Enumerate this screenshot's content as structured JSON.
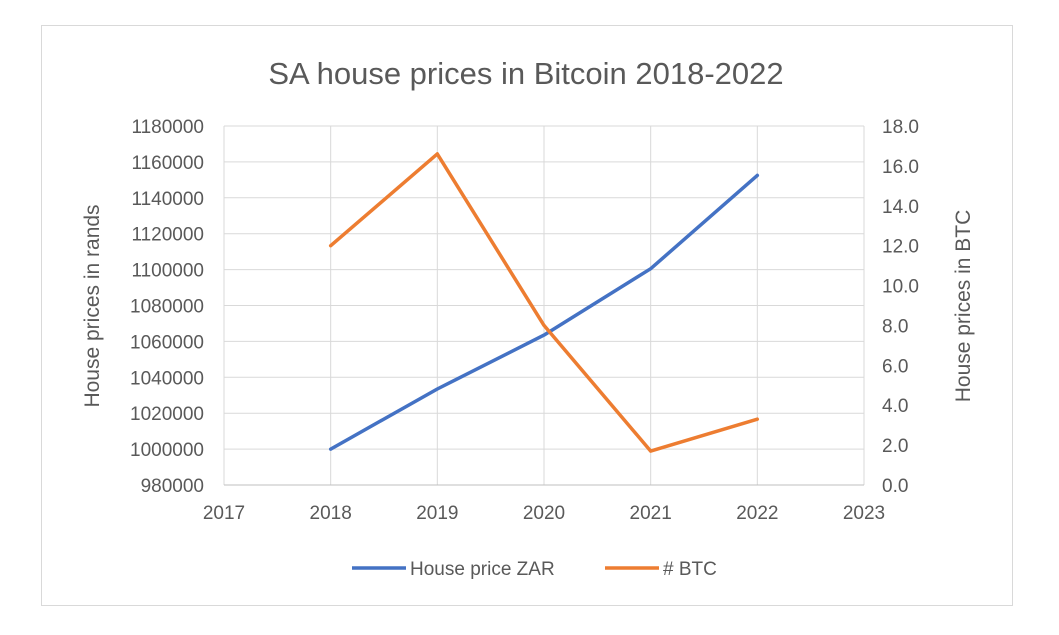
{
  "chart_data": {
    "type": "line",
    "title": "SA house prices in Bitcoin 2018-2022",
    "xlabel": "",
    "x_ticks": [
      "2017",
      "2018",
      "2019",
      "2020",
      "2021",
      "2022",
      "2023"
    ],
    "xlim": [
      2017,
      2023
    ],
    "y_left": {
      "label": "House prices in rands",
      "lim": [
        980000,
        1180000
      ],
      "ticks": [
        "980000",
        "1000000",
        "1020000",
        "1040000",
        "1060000",
        "1080000",
        "1100000",
        "1120000",
        "1140000",
        "1160000",
        "1180000"
      ]
    },
    "y_right": {
      "label": "House prices in BTC",
      "lim": [
        0,
        18
      ],
      "ticks": [
        "0.0",
        "2.0",
        "4.0",
        "6.0",
        "8.0",
        "10.0",
        "12.0",
        "14.0",
        "16.0",
        "18.0"
      ]
    },
    "grid": true,
    "legend_position": "bottom",
    "series": [
      {
        "name": "House price ZAR",
        "axis": "left",
        "color": "#4472c4",
        "x": [
          2018,
          2019,
          2020,
          2021,
          2022
        ],
        "values": [
          1000000,
          1033500,
          1063500,
          1100500,
          1152500
        ]
      },
      {
        "name": "# BTC",
        "axis": "right",
        "color": "#ed7d31",
        "x": [
          2018,
          2019,
          2020,
          2021,
          2022
        ],
        "values": [
          12.0,
          16.6,
          8.0,
          1.7,
          3.3
        ]
      }
    ]
  }
}
